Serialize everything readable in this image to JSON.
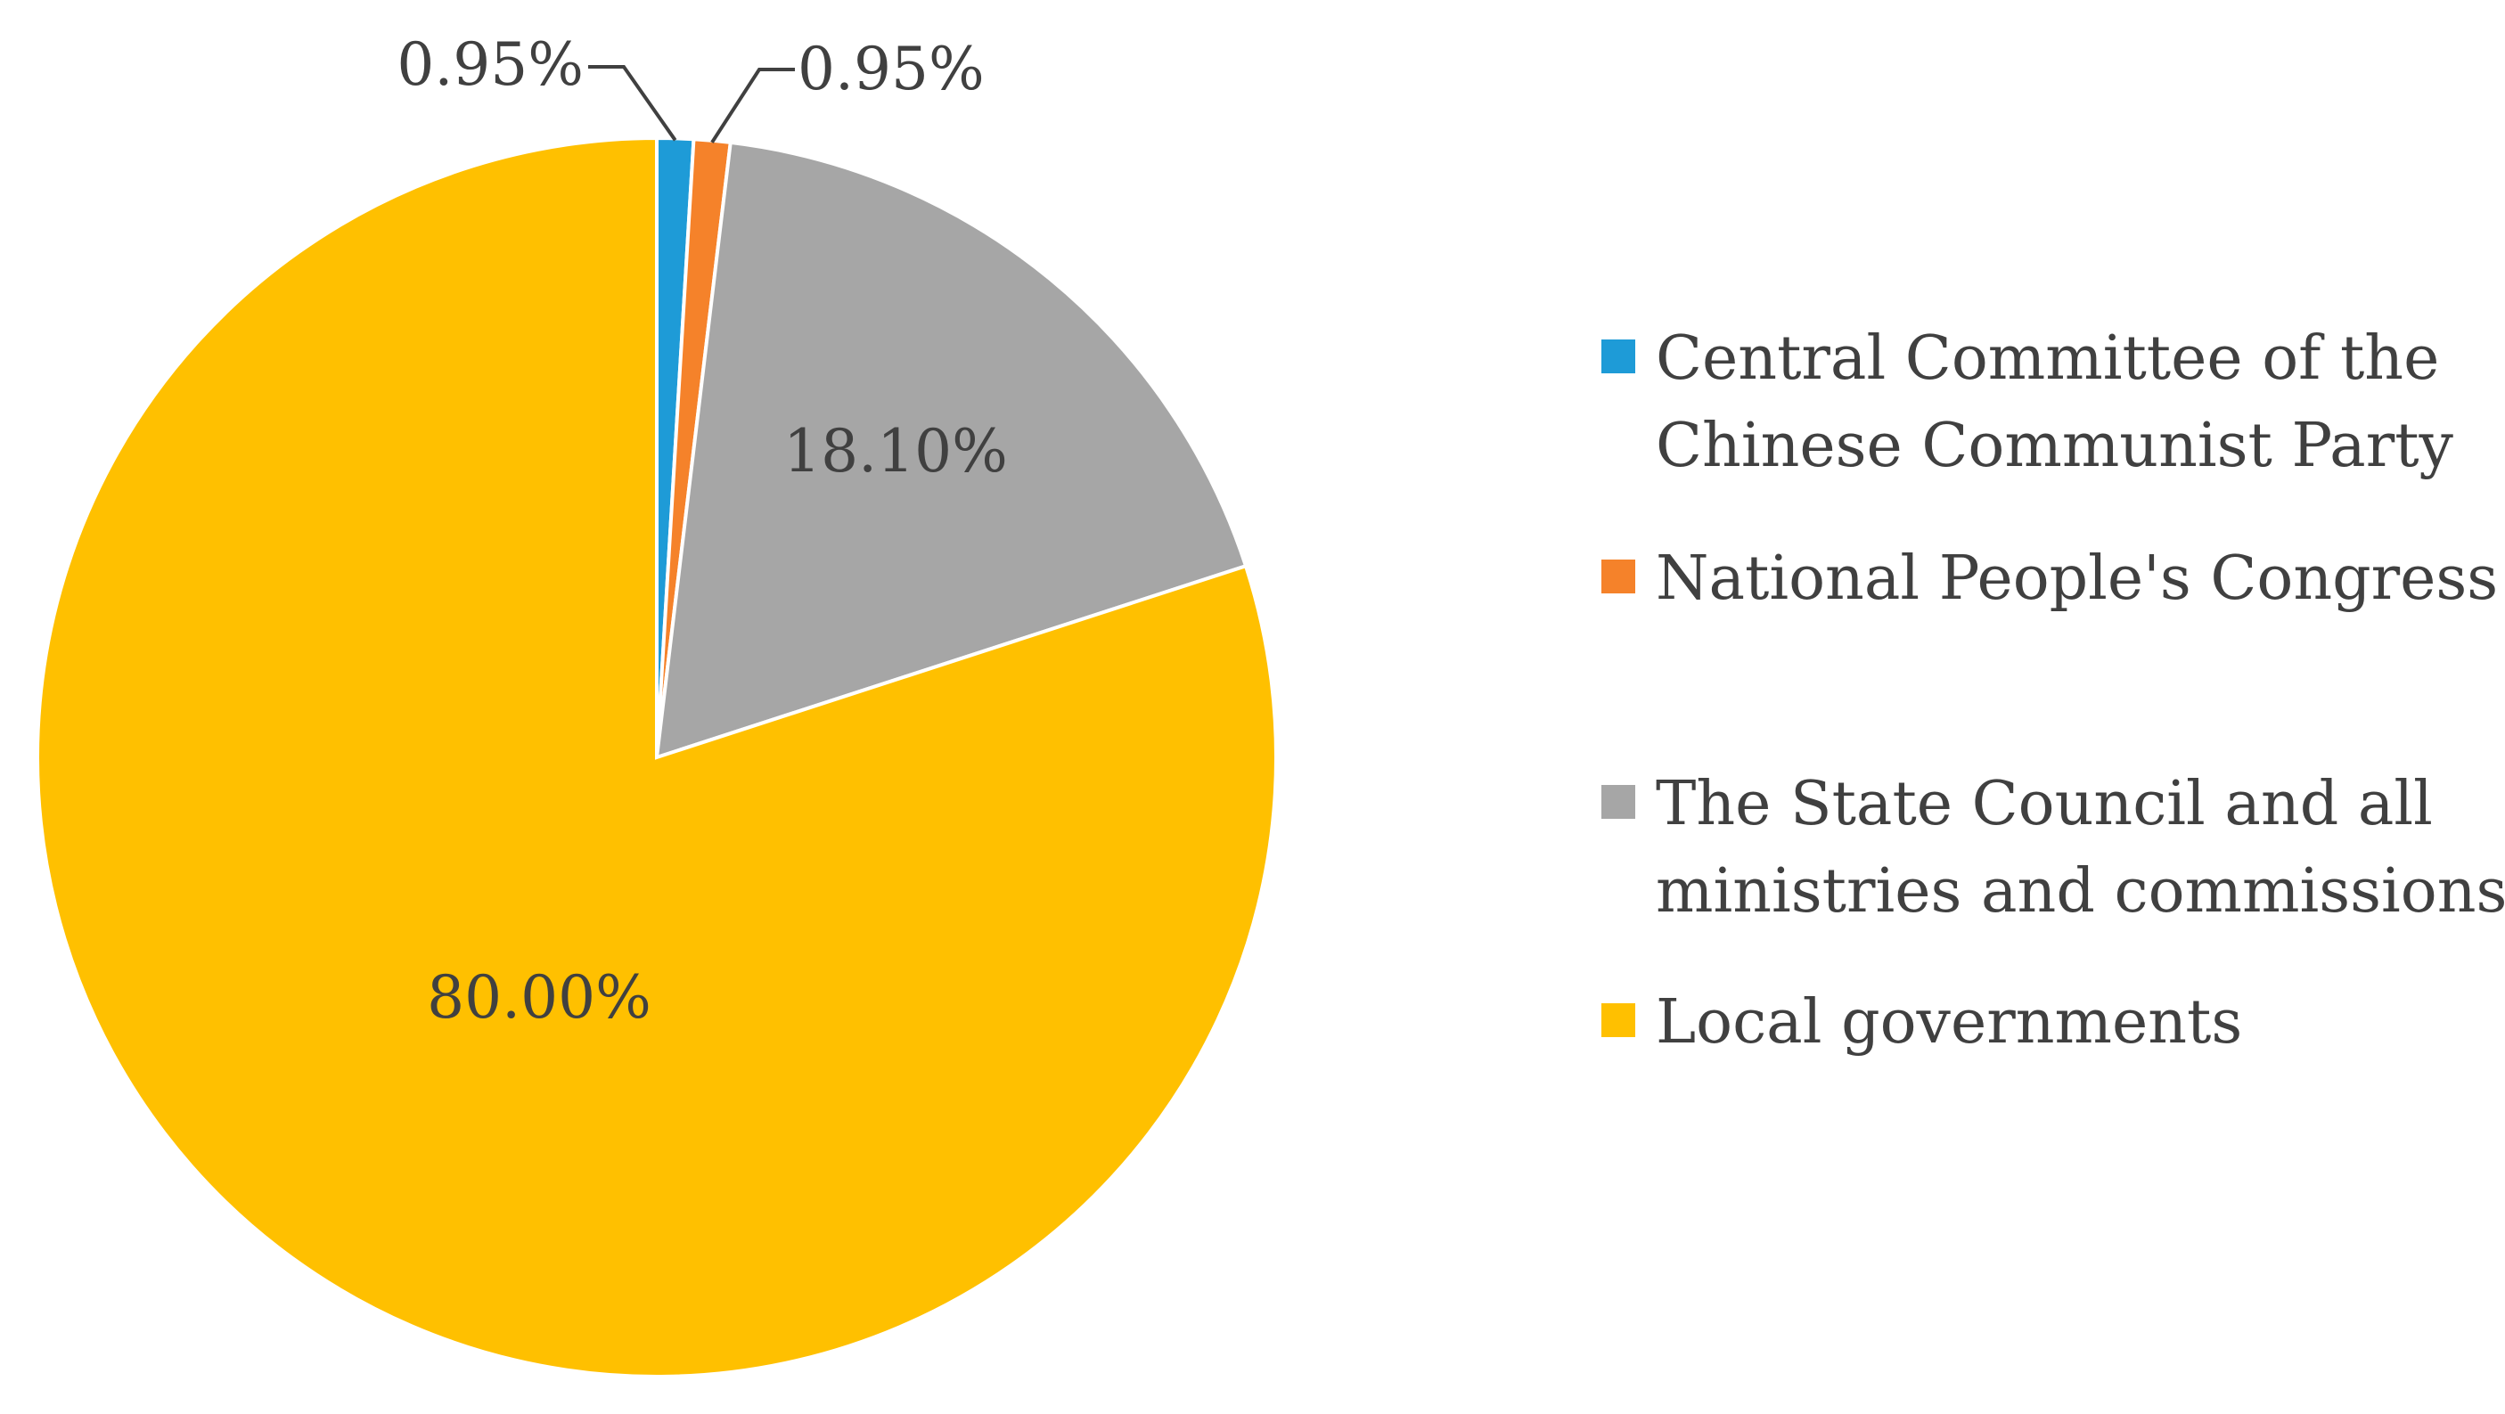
{
  "chart_data": {
    "type": "pie",
    "title": "",
    "slices": [
      {
        "label": "Central Committee of the Chinese Communist Party",
        "value": 0.95,
        "display": "0.95%",
        "color": "#1e9bd7"
      },
      {
        "label": "National People's Congress",
        "value": 0.95,
        "display": "0.95%",
        "color": "#f5822a"
      },
      {
        "label": "The State Council and all ministries and commissions",
        "value": 18.1,
        "display": "18.10%",
        "color": "#a6a6a6"
      },
      {
        "label": "Local governments",
        "value": 80.0,
        "display": "80.00%",
        "color": "#ffc000"
      }
    ],
    "legend": {
      "position": "right",
      "entries": [
        {
          "lines": [
            "Central Committee of the",
            "Chinese Communist Party"
          ],
          "color": "#1e9bd7"
        },
        {
          "lines": [
            "National People's Congress"
          ],
          "color": "#f5822a"
        },
        {
          "lines": [
            "The State Council and all",
            "ministries and commissions"
          ],
          "color": "#a6a6a6"
        },
        {
          "lines": [
            "Local governments"
          ],
          "color": "#ffc000"
        }
      ]
    },
    "start_angle_deg": 0,
    "direction": "clockwise"
  }
}
